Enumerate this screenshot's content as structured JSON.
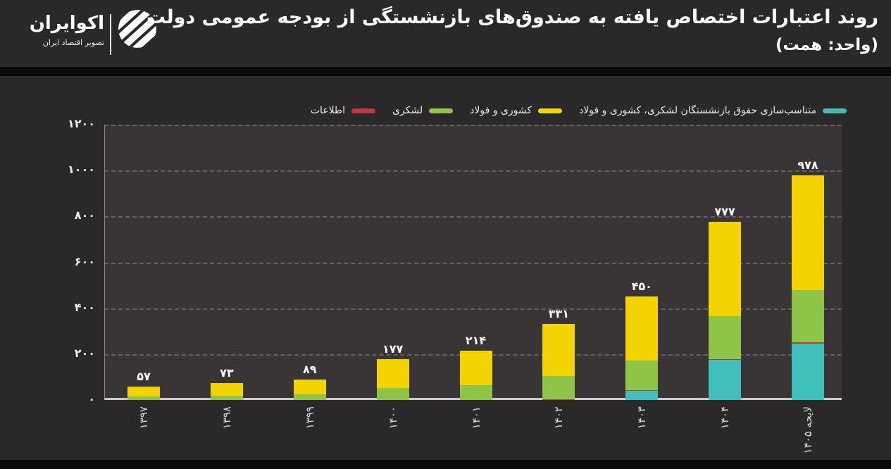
{
  "header": {
    "title": "روند اعتبارات اختصاص یافته به صندوق‌های بازنشستگی از بودجه عمومی دولت",
    "subtitle": "(واحد: همت)",
    "logo": {
      "name": "اکوایران",
      "tagline": "تصویر اقتصاد ایران"
    }
  },
  "colors": {
    "background": "#2b2829",
    "plot_background": "#393536",
    "teal": "#41bfbb",
    "yellow": "#f4d303",
    "green": "#8ec549",
    "red": "#be3a3b"
  },
  "chart_data": {
    "type": "bar",
    "stacked": true,
    "title": "روند اعتبارات اختصاص یافته به صندوق‌های بازنشستگی از بودجه عمومی دولت",
    "unit": "همت",
    "categories": [
      "۱۳۹۷",
      "۱۳۹۸",
      "۱۳۹۹",
      "۱۴۰۰",
      "۱۴۰۱",
      "۱۴۰۲",
      "۱۴۰۳",
      "۱۴۰۴",
      "لایحه ۱۴۰۵"
    ],
    "totals": [
      57,
      73,
      89,
      177,
      214,
      331,
      450,
      777,
      978
    ],
    "total_labels_fa": [
      "۵۷",
      "۷۳",
      "۸۹",
      "۱۷۷",
      "۲۱۴",
      "۳۳۱",
      "۴۵۰",
      "۷۷۷",
      "۹۷۸"
    ],
    "series": [
      {
        "name": "متناسب‌سازی حقوق بازنشستگان لشکری، کشوری و فولاد",
        "color": "#41bfbb",
        "values": [
          0,
          0,
          0,
          0,
          0,
          0,
          40,
          176,
          246
        ]
      },
      {
        "name": "اطلاعات",
        "color": "#be3a3b",
        "values": [
          0,
          0,
          0,
          0,
          0,
          2,
          2,
          3,
          4
        ]
      },
      {
        "name": "لشکری",
        "color": "#8ec549",
        "values": [
          15,
          17,
          25,
          52,
          66,
          101,
          130,
          186,
          229
        ]
      },
      {
        "name": "کشوری و فولاد",
        "color": "#f4d303",
        "values": [
          42,
          56,
          64,
          125,
          148,
          228,
          278,
          412,
          499
        ]
      }
    ],
    "legend": [
      {
        "label": "متناسب‌سازی حقوق بازنشستگان لشکری، کشوری و فولاد",
        "color": "#41bfbb"
      },
      {
        "label": "کشوری و فولاد",
        "color": "#f4d303"
      },
      {
        "label": "لشکری",
        "color": "#8ec549"
      },
      {
        "label": "اطلاعات",
        "color": "#be3a3b"
      }
    ],
    "legend_position": "top",
    "xlabel": "",
    "ylabel": "",
    "ylim": [
      0,
      1200
    ],
    "y_ticks": [
      0,
      200,
      400,
      600,
      800,
      1000,
      1200
    ],
    "y_tick_labels_fa": [
      "۰",
      "۲۰۰",
      "۴۰۰",
      "۶۰۰",
      "۸۰۰",
      "۱۰۰۰",
      "۱۲۰۰"
    ],
    "grid": "dashed horizontal"
  }
}
